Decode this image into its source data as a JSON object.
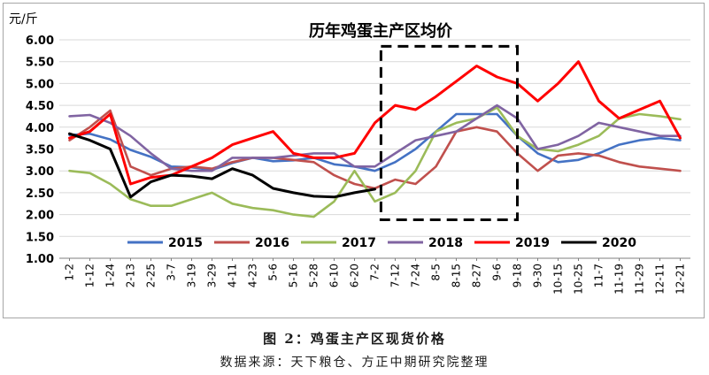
{
  "figure": {
    "caption": "图 2：鸡蛋主产区现货价格",
    "source": "数据来源：天下粮仓、方正中期研究院整理"
  },
  "chart_data": {
    "type": "line",
    "title": "历年鸡蛋主产区均价",
    "ylabel": "元/斤",
    "xlabel": "",
    "ylim": [
      1.0,
      6.0
    ],
    "y_ticks": [
      "1.00",
      "1.50",
      "2.00",
      "2.50",
      "3.00",
      "3.50",
      "4.00",
      "4.50",
      "5.00",
      "5.50",
      "6.00"
    ],
    "categories": [
      "1-2",
      "1-12",
      "1-24",
      "2-13",
      "2-25",
      "3-7",
      "3-19",
      "3-29",
      "4-11",
      "4-23",
      "5-6",
      "5-16",
      "5-28",
      "6-10",
      "6-20",
      "7-2",
      "7-12",
      "7-24",
      "8-5",
      "8-15",
      "8-27",
      "9-6",
      "9-18",
      "9-30",
      "10-15",
      "10-25",
      "11-7",
      "11-19",
      "11-29",
      "12-11",
      "12-21"
    ],
    "grid": "horizontal",
    "legend_position": "bottom",
    "annotation": "dashed-box from 7-12 to 9-12",
    "highlight_box": {
      "x_from": 15.8,
      "x_to": 22.5,
      "y_from": 1.88,
      "y_to": 5.85
    },
    "series": [
      {
        "name": "2015",
        "color": "#4472c4",
        "values": [
          3.82,
          3.85,
          3.72,
          3.48,
          3.32,
          3.1,
          3.08,
          3.02,
          3.18,
          3.3,
          3.22,
          3.24,
          3.3,
          3.15,
          3.1,
          3.0,
          3.2,
          3.5,
          3.9,
          4.3,
          4.3,
          4.3,
          3.8,
          3.4,
          3.2,
          3.25,
          3.4,
          3.6,
          3.7,
          3.75,
          3.7
        ]
      },
      {
        "name": "2016",
        "color": "#c0504d",
        "values": [
          3.7,
          4.0,
          4.38,
          3.1,
          2.9,
          3.05,
          3.1,
          3.05,
          3.2,
          3.3,
          3.3,
          3.25,
          3.2,
          2.9,
          2.7,
          2.6,
          2.8,
          2.7,
          3.1,
          3.9,
          4.0,
          3.9,
          3.4,
          3.0,
          3.35,
          3.4,
          3.35,
          3.2,
          3.1,
          3.05,
          3.0
        ]
      },
      {
        "name": "2017",
        "color": "#9bbb59",
        "values": [
          3.0,
          2.95,
          2.7,
          2.35,
          2.2,
          2.2,
          2.35,
          2.5,
          2.25,
          2.15,
          2.1,
          2.0,
          1.95,
          2.3,
          3.0,
          2.3,
          2.5,
          3.0,
          3.9,
          4.1,
          4.2,
          4.45,
          3.8,
          3.5,
          3.45,
          3.6,
          3.8,
          4.2,
          4.3,
          4.25,
          4.18
        ]
      },
      {
        "name": "2018",
        "color": "#8064a2",
        "values": [
          4.25,
          4.28,
          4.1,
          3.8,
          3.4,
          3.05,
          3.0,
          3.0,
          3.3,
          3.3,
          3.3,
          3.35,
          3.4,
          3.4,
          3.1,
          3.1,
          3.4,
          3.7,
          3.8,
          3.9,
          4.2,
          4.5,
          4.2,
          3.5,
          3.6,
          3.8,
          4.1,
          4.0,
          3.9,
          3.8,
          3.8
        ]
      },
      {
        "name": "2019",
        "color": "#ff0000",
        "values": [
          3.75,
          3.9,
          4.3,
          2.7,
          2.85,
          2.9,
          3.1,
          3.3,
          3.6,
          3.75,
          3.9,
          3.4,
          3.3,
          3.3,
          3.4,
          4.1,
          4.5,
          4.4,
          4.7,
          5.05,
          5.4,
          5.15,
          5.0,
          4.6,
          5.0,
          5.5,
          4.6,
          4.2,
          4.4,
          4.6,
          3.75
        ]
      },
      {
        "name": "2020",
        "color": "#000000",
        "values": [
          3.85,
          3.7,
          3.5,
          2.4,
          2.75,
          2.9,
          2.88,
          2.82,
          3.05,
          2.9,
          2.6,
          2.5,
          2.42,
          2.4,
          2.5,
          2.58,
          null,
          null,
          null,
          null,
          null,
          null,
          null,
          null,
          null,
          null,
          null,
          null,
          null,
          null,
          null
        ]
      }
    ]
  }
}
